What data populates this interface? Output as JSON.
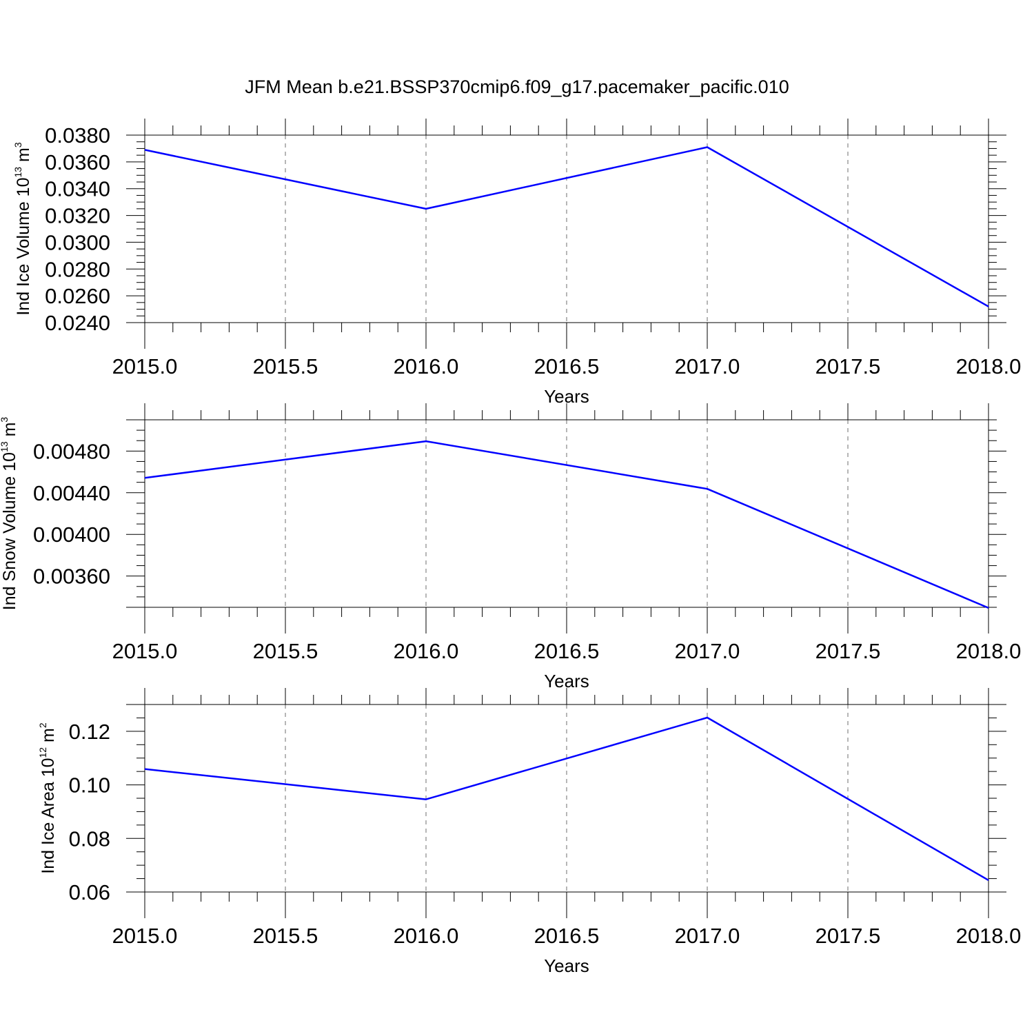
{
  "figure": {
    "title": "JFM Mean b.e21.BSSP370cmip6.f09_g17.pacemaker_pacific.010"
  },
  "chart_data": [
    {
      "type": "line",
      "title": "JFM Mean b.e21.BSSP370cmip6.f09_g17.pacemaker_pacific.010",
      "ylabel": {
        "text": "Ind Ice Volume 10",
        "exponent": "13",
        "unit": " m",
        "unit_exponent": "3"
      },
      "xlabel": "Years",
      "x": [
        2015,
        2016,
        2017,
        2018
      ],
      "series": [
        {
          "values": [
            0.0369,
            0.0325,
            0.0371,
            0.0252
          ],
          "color": "#0000ff"
        }
      ],
      "xlim": [
        2015.0,
        2018.0
      ],
      "ylim": [
        0.024,
        0.038
      ],
      "xticks": [
        2015.0,
        2015.5,
        2016.0,
        2016.5,
        2017.0,
        2017.5,
        2018.0
      ],
      "xtick_labels": [
        "2015.0",
        "2015.5",
        "2016.0",
        "2016.5",
        "2017.0",
        "2017.5",
        "2018.0"
      ],
      "yticks": [
        0.024,
        0.026,
        0.028,
        0.03,
        0.032,
        0.034,
        0.036,
        0.038
      ],
      "ytick_labels": [
        "0.0240",
        "0.0260",
        "0.0280",
        "0.0300",
        "0.0320",
        "0.0340",
        "0.0360",
        "0.0380"
      ],
      "grid": "vertical dashed"
    },
    {
      "type": "line",
      "ylabel": {
        "text": "Ind Snow Volume 10",
        "exponent": "13",
        "unit": " m",
        "unit_exponent": "3"
      },
      "xlabel": "Years",
      "x": [
        2015,
        2016,
        2017,
        2018
      ],
      "series": [
        {
          "values": [
            0.004542,
            0.004894,
            0.004437,
            0.003294
          ],
          "color": "#0000ff"
        }
      ],
      "xlim": [
        2015.0,
        2018.0
      ],
      "ylim": [
        0.0033,
        0.0051
      ],
      "xticks": [
        2015.0,
        2015.5,
        2016.0,
        2016.5,
        2017.0,
        2017.5,
        2018.0
      ],
      "xtick_labels": [
        "2015.0",
        "2015.5",
        "2016.0",
        "2016.5",
        "2017.0",
        "2017.5",
        "2018.0"
      ],
      "yticks": [
        0.0036,
        0.004,
        0.0044,
        0.0048
      ],
      "ytick_labels": [
        "0.00360",
        "0.00400",
        "0.00440",
        "0.00480"
      ],
      "grid": "vertical dashed"
    },
    {
      "type": "line",
      "ylabel": {
        "text": "Ind Ice Area 10",
        "exponent": "12",
        "unit": " m",
        "unit_exponent": "2"
      },
      "xlabel": "Years",
      "x": [
        2015,
        2016,
        2017,
        2018
      ],
      "series": [
        {
          "values": [
            0.1059,
            0.0946,
            0.1251,
            0.0644
          ],
          "color": "#0000ff"
        }
      ],
      "xlim": [
        2015.0,
        2018.0
      ],
      "ylim": [
        0.06,
        0.13
      ],
      "xticks": [
        2015.0,
        2015.5,
        2016.0,
        2016.5,
        2017.0,
        2017.5,
        2018.0
      ],
      "xtick_labels": [
        "2015.0",
        "2015.5",
        "2016.0",
        "2016.5",
        "2017.0",
        "2017.5",
        "2018.0"
      ],
      "yticks": [
        0.06,
        0.08,
        0.1,
        0.12
      ],
      "ytick_labels": [
        "0.06",
        "0.08",
        "0.10",
        "0.12"
      ],
      "grid": "vertical dashed"
    }
  ]
}
